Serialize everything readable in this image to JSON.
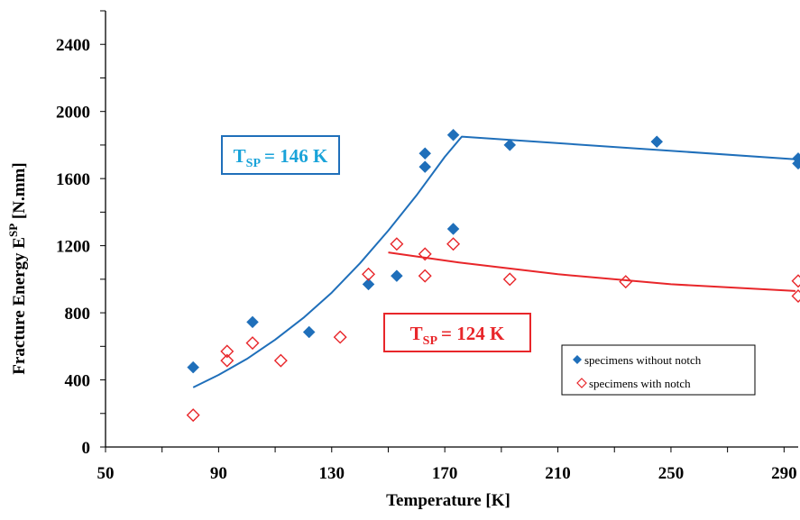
{
  "chart_data": {
    "type": "scatter",
    "xlabel": "Temperature [K]",
    "ylabel": {
      "main": "Fracture Energy E",
      "sup": "SP",
      "unit": " [N.mm]"
    },
    "xlim": [
      50,
      295
    ],
    "ylim": [
      0,
      2600
    ],
    "xticks": [
      "50",
      "90",
      "130",
      "170",
      "210",
      "250",
      "290"
    ],
    "xtick_values": [
      50,
      90,
      130,
      170,
      210,
      250,
      290
    ],
    "yticks": [
      "0",
      "400",
      "800",
      "1200",
      "1600",
      "2000",
      "2400"
    ],
    "ytick_values": [
      0,
      400,
      800,
      1200,
      1600,
      2000,
      2400
    ],
    "grid": false,
    "legend_position": "bottom-right",
    "series": [
      {
        "name": "specimens without notch",
        "marker": "filled-diamond",
        "color": "#1f6fba",
        "points": [
          [
            81,
            475
          ],
          [
            102,
            745
          ],
          [
            122,
            685
          ],
          [
            143,
            970
          ],
          [
            153,
            1020
          ],
          [
            163,
            1750
          ],
          [
            163,
            1670
          ],
          [
            173,
            1860
          ],
          [
            173,
            1300
          ],
          [
            193,
            1800
          ],
          [
            245,
            1820
          ],
          [
            295,
            1720
          ],
          [
            295,
            1690
          ]
        ]
      },
      {
        "name": "specimens with notch",
        "marker": "open-diamond",
        "color": "#e8262a",
        "points": [
          [
            81,
            190
          ],
          [
            93,
            515
          ],
          [
            93,
            570
          ],
          [
            102,
            620
          ],
          [
            112,
            515
          ],
          [
            133,
            655
          ],
          [
            143,
            1030
          ],
          [
            153,
            1210
          ],
          [
            163,
            1150
          ],
          [
            163,
            1020
          ],
          [
            173,
            1210
          ],
          [
            193,
            1000
          ],
          [
            234,
            985
          ],
          [
            295,
            990
          ],
          [
            295,
            900
          ]
        ]
      }
    ],
    "fit_lines": [
      {
        "color": "#1f6fba",
        "points": [
          [
            81,
            355
          ],
          [
            90,
            430
          ],
          [
            100,
            525
          ],
          [
            110,
            640
          ],
          [
            120,
            770
          ],
          [
            130,
            920
          ],
          [
            140,
            1095
          ],
          [
            150,
            1290
          ],
          [
            160,
            1500
          ],
          [
            170,
            1730
          ],
          [
            176,
            1850
          ],
          [
            294,
            1715
          ]
        ]
      },
      {
        "color": "#e8262a",
        "points": [
          [
            150,
            1160
          ],
          [
            175,
            1100
          ],
          [
            210,
            1030
          ],
          [
            250,
            970
          ],
          [
            294,
            930
          ]
        ]
      }
    ],
    "annotations": [
      {
        "main": "T",
        "sub": "SP",
        "rest": "= 146 K",
        "color": "#19a3d9"
      },
      {
        "main": "T",
        "sub": "SP",
        "rest": "=  124 K",
        "color": "#e8262a"
      }
    ]
  }
}
